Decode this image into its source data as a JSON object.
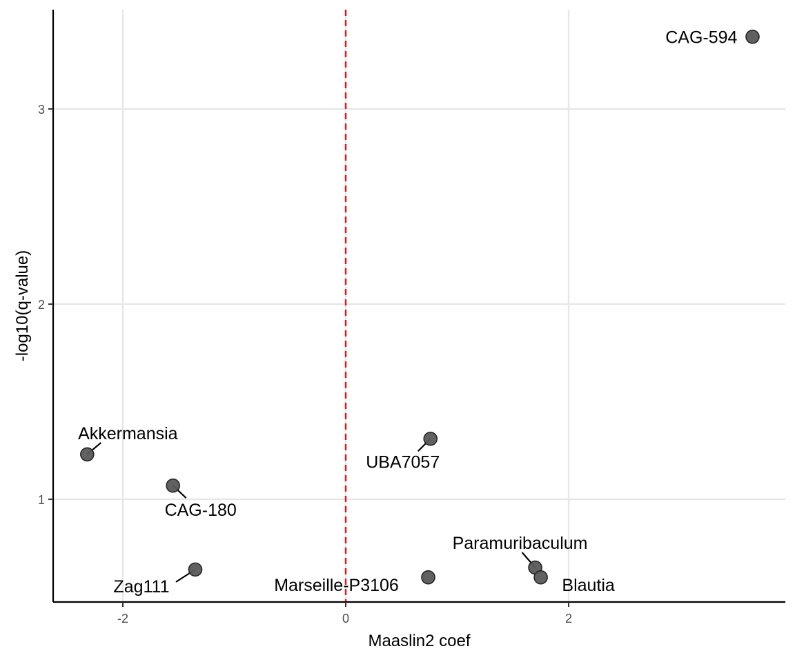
{
  "chart_data": {
    "type": "scatter",
    "xlabel": "Maaslin2 coef",
    "ylabel": "-log10(q-value)",
    "xlim": [
      -2.6,
      3.95
    ],
    "ylim": [
      0.53,
      3.52
    ],
    "x_ticks": [
      -2,
      0,
      2
    ],
    "y_ticks": [
      1,
      2,
      3
    ],
    "x_tick_labels": [
      "-2",
      "0",
      "2"
    ],
    "y_tick_labels": [
      "1",
      "2",
      "3"
    ],
    "grid": true,
    "reference_line": {
      "x": 0,
      "style": "dashed",
      "color": "#e8141c"
    },
    "point_color": "#595959",
    "points": [
      {
        "label": "CAG-594",
        "x": 3.65,
        "y": 3.37
      },
      {
        "label": "UBA7057",
        "x": 0.76,
        "y": 1.31
      },
      {
        "label": "Akkermansia",
        "x": -2.32,
        "y": 1.23
      },
      {
        "label": "CAG-180",
        "x": -1.55,
        "y": 1.07
      },
      {
        "label": "Zag111",
        "x": -1.35,
        "y": 0.64
      },
      {
        "label": "Marseille-P3106",
        "x": 0.74,
        "y": 0.6
      },
      {
        "label": "Paramuribaculum",
        "x": 1.7,
        "y": 0.65
      },
      {
        "label": "Blautia",
        "x": 1.75,
        "y": 0.6
      }
    ]
  }
}
